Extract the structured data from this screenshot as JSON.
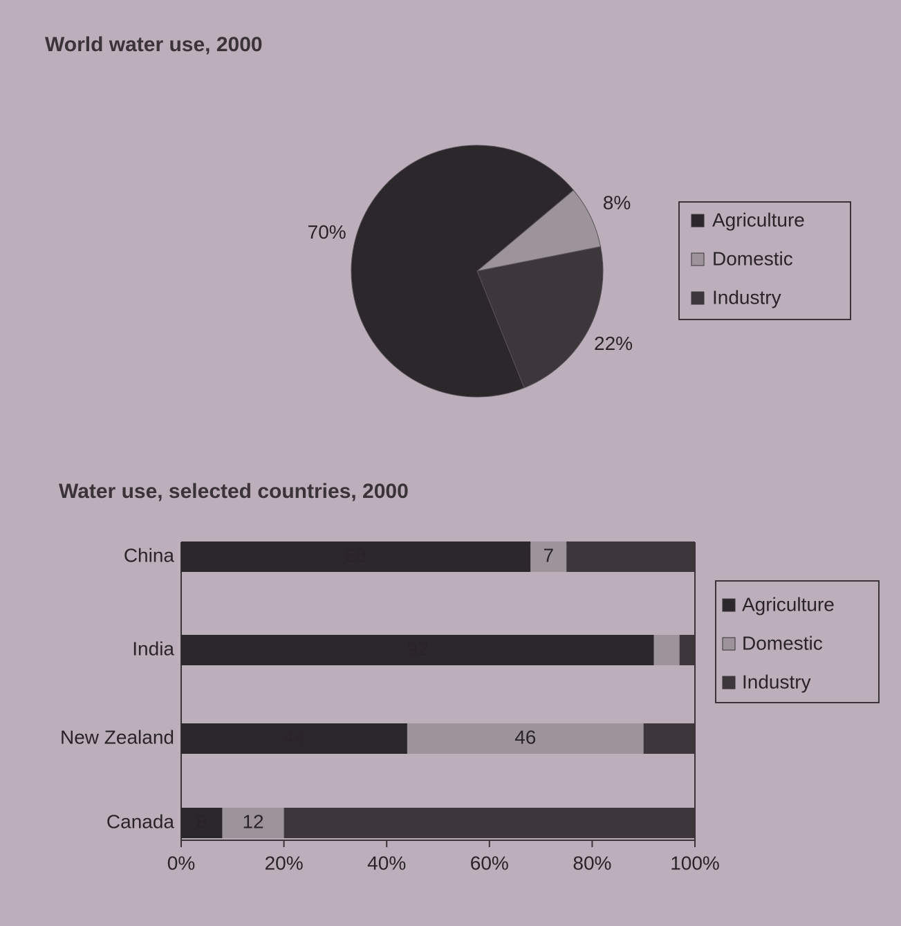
{
  "chart_data": [
    {
      "type": "pie",
      "title": "World water use, 2000",
      "categories": [
        "Agriculture",
        "Domestic",
        "Industry"
      ],
      "values": [
        70,
        8,
        22
      ],
      "value_labels": [
        "70%",
        "8%",
        "22%"
      ],
      "colors": [
        "#2b272a",
        "#9c949a",
        "#3d373b"
      ],
      "legend": "right"
    },
    {
      "type": "stacked-bar-horizontal",
      "title": "Water use, selected countries, 2000",
      "categories": [
        "China",
        "India",
        "New Zealand",
        "Canada"
      ],
      "series": [
        {
          "name": "Agriculture",
          "color": "#2b272a",
          "values": [
            68,
            92,
            44,
            8
          ],
          "value_labels": [
            "68",
            "92",
            "44",
            "8"
          ]
        },
        {
          "name": "Domestic",
          "color": "#9c949a",
          "values": [
            7,
            5,
            46,
            12
          ],
          "value_labels": [
            "7",
            null,
            "46",
            "12"
          ]
        },
        {
          "name": "Industry",
          "color": "#3d373b",
          "values": [
            25,
            3,
            10,
            80
          ],
          "value_labels": [
            null,
            null,
            null,
            null
          ]
        }
      ],
      "xlim": [
        0,
        100
      ],
      "xticks": [
        {
          "value": 0,
          "label": "0%"
        },
        {
          "value": 20,
          "label": "20%"
        },
        {
          "value": 40,
          "label": "40%"
        },
        {
          "value": 60,
          "label": "60%"
        },
        {
          "value": 80,
          "label": "80%"
        },
        {
          "value": 100,
          "label": "100%"
        }
      ],
      "legend": "right"
    }
  ]
}
